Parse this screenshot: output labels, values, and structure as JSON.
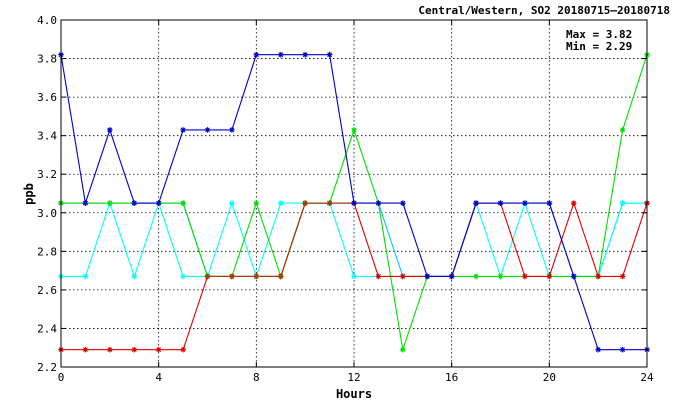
{
  "chart_data": {
    "type": "line",
    "title": "Central/Western, SO2 20180715–20180718",
    "xlabel": "Hours",
    "ylabel": "ppb",
    "xlim": [
      0,
      24
    ],
    "ylim": [
      2.2,
      4.0
    ],
    "x_ticks": [
      0,
      4,
      8,
      12,
      16,
      20,
      24
    ],
    "y_ticks": [
      2.2,
      2.4,
      2.6,
      2.8,
      3.0,
      3.2,
      3.4,
      3.6,
      3.8,
      4.0
    ],
    "grid": true,
    "annotations": [
      "Max = 3.82",
      "Min = 2.29"
    ],
    "x": [
      0,
      1,
      2,
      3,
      4,
      5,
      6,
      7,
      8,
      9,
      10,
      11,
      12,
      13,
      14,
      15,
      16,
      17,
      18,
      19,
      20,
      21,
      22,
      23,
      24
    ],
    "series": [
      {
        "color": "#00c8ff",
        "values": [
          3.05,
          3.05,
          3.05,
          3.05,
          3.05,
          3.05,
          2.67,
          2.67,
          2.67,
          2.67,
          3.05,
          3.05,
          3.05,
          3.05,
          2.67,
          2.67,
          2.67,
          3.05,
          3.05,
          3.05,
          3.05,
          2.67,
          2.67,
          3.05,
          3.05
        ]
      },
      {
        "color": "#00ffff",
        "values": [
          2.67,
          2.67,
          3.05,
          2.67,
          3.05,
          2.67,
          2.67,
          3.05,
          2.67,
          3.05,
          3.05,
          3.05,
          2.67,
          2.67,
          2.67,
          2.67,
          2.67,
          3.05,
          2.67,
          3.05,
          2.67,
          2.67,
          2.67,
          3.05,
          3.05
        ]
      },
      {
        "color": "#00e000",
        "values": [
          3.05,
          3.05,
          3.05,
          3.05,
          3.05,
          3.05,
          2.67,
          2.67,
          3.05,
          2.67,
          3.05,
          3.05,
          3.43,
          3.05,
          2.29,
          2.67,
          2.67,
          2.67,
          2.67,
          2.67,
          2.67,
          2.67,
          2.67,
          3.43,
          3.82
        ]
      },
      {
        "color": "#e00000",
        "values": [
          2.29,
          2.29,
          2.29,
          2.29,
          2.29,
          2.29,
          2.67,
          2.67,
          2.67,
          2.67,
          3.05,
          3.05,
          3.05,
          2.67,
          2.67,
          2.67,
          2.67,
          3.05,
          3.05,
          2.67,
          2.67,
          3.05,
          2.67,
          2.67,
          3.05
        ]
      },
      {
        "color": "#a04000",
        "values": [
          null,
          null,
          null,
          null,
          null,
          null,
          2.67,
          2.67,
          2.67,
          2.67,
          3.05,
          3.05,
          3.05,
          null,
          null,
          null,
          null,
          null,
          null,
          null,
          null,
          null,
          null,
          null,
          null
        ]
      },
      {
        "color": "#0000cc",
        "values": [
          3.82,
          3.05,
          3.43,
          3.05,
          3.05,
          3.43,
          3.43,
          3.43,
          3.82,
          3.82,
          3.82,
          3.82,
          3.05,
          3.05,
          3.05,
          2.67,
          2.67,
          3.05,
          3.05,
          3.05,
          3.05,
          2.67,
          2.29,
          2.29,
          2.29
        ]
      }
    ]
  }
}
